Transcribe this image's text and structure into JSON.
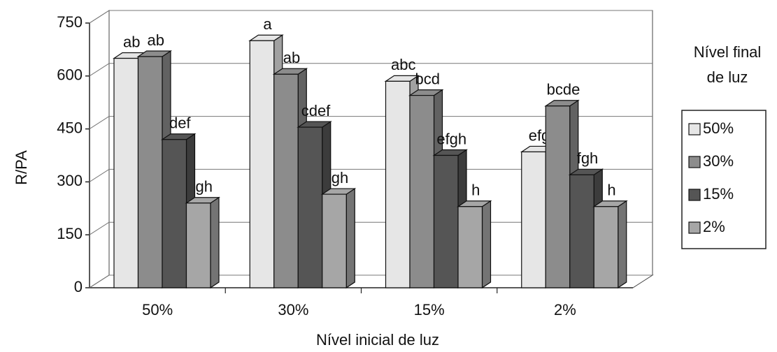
{
  "chart_data": {
    "type": "bar3d",
    "x_label": "Nível inicial de luz",
    "y_label": "R/PA",
    "legend_title": [
      "Nível final",
      "de luz"
    ],
    "categories": [
      "50%",
      "30%",
      "15%",
      "2%"
    ],
    "series": [
      {
        "name": "50%",
        "color": "#e6e6e6",
        "values": [
          650,
          700,
          585,
          385
        ],
        "annotations": [
          "ab",
          "a",
          "abc",
          "efg"
        ]
      },
      {
        "name": "30%",
        "color": "#8c8c8c",
        "values": [
          655,
          605,
          545,
          515
        ],
        "annotations": [
          "ab",
          "ab",
          "bcd",
          "bcde"
        ]
      },
      {
        "name": "15%",
        "color": "#555555",
        "values": [
          420,
          455,
          375,
          320
        ],
        "annotations": [
          "def",
          "cdef",
          "efgh",
          "fgh"
        ]
      },
      {
        "name": "2%",
        "color": "#a6a6a6",
        "values": [
          240,
          265,
          230,
          230
        ],
        "annotations": [
          "gh",
          "gh",
          "h",
          "h"
        ]
      }
    ],
    "ylim": [
      0,
      750
    ],
    "yticks": [
      0,
      150,
      300,
      450,
      600,
      750
    ],
    "grid": true,
    "legend": "right"
  }
}
